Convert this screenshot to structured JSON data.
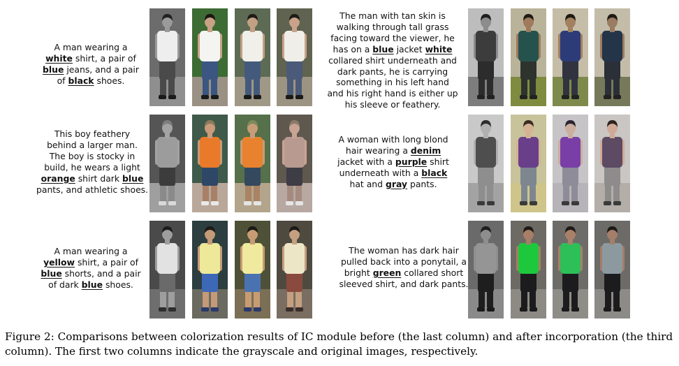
{
  "panels": [
    {
      "id": "p1",
      "lines": [
        [
          {
            "t": "A man wearing a"
          }
        ],
        [
          {
            "t": "white",
            "b": 1
          },
          {
            "t": " shirt, a pair of"
          }
        ],
        [
          {
            "t": "blue",
            "b": 1
          },
          {
            "t": " jeans, and a pair"
          }
        ],
        [
          {
            "t": "of "
          },
          {
            "t": "black",
            "b": 1
          },
          {
            "t": " shoes."
          }
        ]
      ],
      "images": [
        {
          "bg": "#6c6c6c",
          "ground": "#8f8f8f",
          "skin": "#9a9a9a",
          "hair": "#222222",
          "top": "#eeeeee",
          "bottom": "#4a4a4a",
          "shoes": "#1a1a1a",
          "leg": "#4a4a4a"
        },
        {
          "bg": "#3d6b34",
          "ground": "#9a9084",
          "skin": "#c8a285",
          "hair": "#1c1712",
          "top": "#f4f4f2",
          "bottom": "#3a5681",
          "shoes": "#1a1a1a",
          "leg": "#3a5681"
        },
        {
          "bg": "#5d6b54",
          "ground": "#a09886",
          "skin": "#c2a084",
          "hair": "#1e1b16",
          "top": "#f1efe9",
          "bottom": "#445a7c",
          "shoes": "#1a1a1a",
          "leg": "#445a7c"
        },
        {
          "bg": "#5f6350",
          "ground": "#9c9482",
          "skin": "#c8a38a",
          "hair": "#1e1b16",
          "top": "#f0eee8",
          "bottom": "#4a5a78",
          "shoes": "#1a1a1a",
          "leg": "#4a5a78"
        }
      ]
    },
    {
      "id": "p2",
      "lines": [
        [
          {
            "t": "The man with tan skin is"
          }
        ],
        [
          {
            "t": "walking through tall grass"
          }
        ],
        [
          {
            "t": "facing toward the viewer,  he"
          }
        ],
        [
          {
            "t": "has on a "
          },
          {
            "t": "blue",
            "b": 1
          },
          {
            "t": " jacket "
          },
          {
            "t": "white",
            "b": 1
          }
        ],
        [
          {
            "t": "collared shirt underneath and"
          }
        ],
        [
          {
            "t": "dark pants, he is carrying"
          }
        ],
        [
          {
            "t": "something in his left hand"
          }
        ],
        [
          {
            "t": "and his right hand is either up"
          }
        ],
        [
          {
            "t": "his sleeve or feathery."
          }
        ]
      ],
      "images": [
        {
          "bg": "#bdbdbd",
          "ground": "#7d7d7d",
          "skin": "#8c8c8c",
          "hair": "#1e1e1e",
          "top": "#3c3c3c",
          "bottom": "#2c2c2c",
          "shoes": "#222222",
          "leg": "#2c2c2c"
        },
        {
          "bg": "#b9b39a",
          "ground": "#7f8b3e",
          "skin": "#a07a5c",
          "hair": "#1e1a14",
          "top": "#26524d",
          "bottom": "#2e332e",
          "shoes": "#222222",
          "leg": "#2e332e"
        },
        {
          "bg": "#c5bda7",
          "ground": "#7e8a4c",
          "skin": "#a3805f",
          "hair": "#1e1a14",
          "top": "#2d3b78",
          "bottom": "#31343f",
          "shoes": "#222222",
          "leg": "#31343f"
        },
        {
          "bg": "#c2bca9",
          "ground": "#777a5a",
          "skin": "#9a7c62",
          "hair": "#1e1a14",
          "top": "#243449",
          "bottom": "#2b2f38",
          "shoes": "#222222",
          "leg": "#2b2f38"
        }
      ]
    },
    {
      "id": "p3",
      "lines": [
        [
          {
            "t": "This boy feathery"
          }
        ],
        [
          {
            "t": "behind a larger man."
          }
        ],
        [
          {
            "t": "The boy is stocky in"
          }
        ],
        [
          {
            "t": "build, he wears a light"
          }
        ],
        [
          {
            "t": "orange",
            "b": 1
          },
          {
            "t": " shirt dark "
          },
          {
            "t": "blue",
            "b": 1
          }
        ],
        [
          {
            "t": "pants, and athletic shoes."
          }
        ]
      ],
      "images": [
        {
          "bg": "#555555",
          "ground": "#9f9f9f",
          "skin": "#a3a3a3",
          "hair": "#7d7d7d",
          "top": "#9c9c9c",
          "bottom": "#3c3c3c",
          "shoes": "#d9d9d9",
          "leg": "#8a8a8a"
        },
        {
          "bg": "#3f5a4a",
          "ground": "#b9a89a",
          "skin": "#c99b7a",
          "hair": "#8b7a5a",
          "top": "#e87a2a",
          "bottom": "#2f4766",
          "shoes": "#e9e9e9",
          "leg": "#a88068"
        },
        {
          "bg": "#55704b",
          "ground": "#b3a58b",
          "skin": "#c79d77",
          "hair": "#7d8a5a",
          "top": "#e9822e",
          "bottom": "#35495e",
          "shoes": "#e5e5e5",
          "leg": "#a98363"
        },
        {
          "bg": "#5e584f",
          "ground": "#b7a8a1",
          "skin": "#c9a393",
          "hair": "#8a7a66",
          "top": "#b89a90",
          "bottom": "#3e3c45",
          "shoes": "#e5e5e5",
          "leg": "#a58a80"
        }
      ]
    },
    {
      "id": "p4",
      "lines": [
        [
          {
            "t": "A woman with long blond"
          }
        ],
        [
          {
            "t": "hair wearing a "
          },
          {
            "t": "denim",
            "b": 1
          }
        ],
        [
          {
            "t": "jacket with a "
          },
          {
            "t": "purple",
            "b": 1
          },
          {
            "t": " shirt"
          }
        ],
        [
          {
            "t": "underneath with a "
          },
          {
            "t": "black",
            "b": 1
          }
        ],
        [
          {
            "t": "hat and "
          },
          {
            "t": "gray",
            "b": 1
          },
          {
            "t": " pants."
          }
        ]
      ],
      "images": [
        {
          "bg": "#c9c9c9",
          "ground": "#a3a3a3",
          "skin": "#b0b0b0",
          "hair": "#2c2c2c",
          "top": "#4e4e4e",
          "bottom": "#8e8e8e",
          "shoes": "#3a3a3a",
          "leg": "#8e8e8e"
        },
        {
          "bg": "#c8c39a",
          "ground": "#cfc58b",
          "skin": "#d4b294",
          "hair": "#3a2c24",
          "top": "#6a3f8a",
          "bottom": "#7e8790",
          "shoes": "#3a3a3a",
          "leg": "#7e8790"
        },
        {
          "bg": "#c6c4c6",
          "ground": "#b6b4b8",
          "skin": "#cbae9e",
          "hair": "#2c2430",
          "top": "#7a3fa6",
          "bottom": "#8e8c98",
          "shoes": "#3a3a3a",
          "leg": "#8e8c98"
        },
        {
          "bg": "#c9c6c3",
          "ground": "#b4aea8",
          "skin": "#d1aa97",
          "hair": "#2e2420",
          "top": "#5d4a63",
          "bottom": "#8e8b8c",
          "shoes": "#3a3a3a",
          "leg": "#8e8b8c"
        }
      ]
    },
    {
      "id": "p5",
      "lines": [
        [
          {
            "t": "A man wearing a"
          }
        ],
        [
          {
            "t": "yellow",
            "b": 1
          },
          {
            "t": " shirt, a pair of"
          }
        ],
        [
          {
            "t": "blue",
            "b": 1
          },
          {
            "t": " shorts, and a pair"
          }
        ],
        [
          {
            "t": "of dark "
          },
          {
            "t": "blue",
            "b": 1
          },
          {
            "t": " shoes."
          }
        ]
      ],
      "images": [
        {
          "bg": "#4a4a4a",
          "ground": "#6e6e6e",
          "skin": "#9e9e9e",
          "hair": "#1c1c1c",
          "top": "#e2e2e2",
          "bottom": "#6a6a6a",
          "shoes": "#2e2e2e",
          "leg": "#9e9e9e"
        },
        {
          "bg": "#2c3e3f",
          "ground": "#6b6a60",
          "skin": "#c49a78",
          "hair": "#1c1a16",
          "top": "#ede89a",
          "bottom": "#3d68b8",
          "shoes": "#2b3a6a",
          "leg": "#c49a78"
        },
        {
          "bg": "#4e5138",
          "ground": "#7b6f55",
          "skin": "#c79c74",
          "hair": "#1c1a16",
          "top": "#f0ea9e",
          "bottom": "#4a72b0",
          "shoes": "#2b3a6a",
          "leg": "#c79c74"
        },
        {
          "bg": "#4e4a40",
          "ground": "#7a6e62",
          "skin": "#c4a080",
          "hair": "#1c1a16",
          "top": "#ece6c6",
          "bottom": "#8a4a3e",
          "shoes": "#3a2e2a",
          "leg": "#c4a080"
        }
      ]
    },
    {
      "id": "p6",
      "lines": [
        [
          {
            "t": "The woman has dark hair"
          }
        ],
        [
          {
            "t": "pulled back into a ponytail, a"
          }
        ],
        [
          {
            "t": "bright "
          },
          {
            "t": "green",
            "b": 1
          },
          {
            "t": " collared short"
          }
        ],
        [
          {
            "t": "sleeved shirt, and dark pants."
          }
        ]
      ],
      "images": [
        {
          "bg": "#6a6a6a",
          "ground": "#8a8a8a",
          "skin": "#8e8e8e",
          "hair": "#1e1e1e",
          "top": "#959595",
          "bottom": "#1e1e1e",
          "shoes": "#1a1a1a",
          "leg": "#1e1e1e"
        },
        {
          "bg": "#6d6a64",
          "ground": "#8d8a84",
          "skin": "#a87e66",
          "hair": "#1e1a18",
          "top": "#1ec83c",
          "bottom": "#1c1c1e",
          "shoes": "#1a1a1a",
          "leg": "#1c1c1e"
        },
        {
          "bg": "#6e6c68",
          "ground": "#8f8d88",
          "skin": "#a98068",
          "hair": "#1e1a18",
          "top": "#2dbf58",
          "bottom": "#1c1c1e",
          "shoes": "#1a1a1a",
          "leg": "#1c1c1e"
        },
        {
          "bg": "#6c6b68",
          "ground": "#8d8b87",
          "skin": "#a47e6a",
          "hair": "#1e1a18",
          "top": "#8c9aa0",
          "bottom": "#1c1c1e",
          "shoes": "#1a1a1a",
          "leg": "#1c1c1e"
        }
      ]
    }
  ],
  "caption": {
    "line1": "Figure 2: Comparisons between colorization results of IC module before (the last column) and after incorporation (the third",
    "line2": "column). The first two columns indicate the grayscale and original images, respectively."
  }
}
